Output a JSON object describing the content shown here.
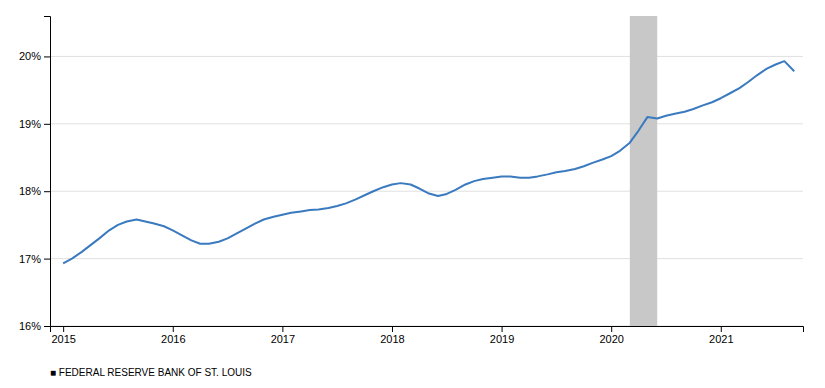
{
  "chart_data": {
    "type": "line",
    "color": "#3a7abf",
    "x": [
      2015.0,
      2015.08,
      2015.17,
      2015.25,
      2015.33,
      2015.42,
      2015.5,
      2015.58,
      2015.67,
      2015.75,
      2015.83,
      2015.92,
      2016.0,
      2016.08,
      2016.17,
      2016.25,
      2016.33,
      2016.42,
      2016.5,
      2016.58,
      2016.67,
      2016.75,
      2016.83,
      2016.92,
      2017.0,
      2017.08,
      2017.17,
      2017.25,
      2017.33,
      2017.42,
      2017.5,
      2017.58,
      2017.67,
      2017.75,
      2017.83,
      2017.92,
      2018.0,
      2018.08,
      2018.17,
      2018.25,
      2018.33,
      2018.42,
      2018.5,
      2018.58,
      2018.67,
      2018.75,
      2018.83,
      2018.92,
      2019.0,
      2019.08,
      2019.17,
      2019.25,
      2019.33,
      2019.42,
      2019.5,
      2019.58,
      2019.67,
      2019.75,
      2019.83,
      2019.92,
      2020.0,
      2020.08,
      2020.17,
      2020.25,
      2020.33,
      2020.42,
      2020.5,
      2020.58,
      2020.67,
      2020.75,
      2020.83,
      2020.92,
      2021.0,
      2021.08,
      2021.17,
      2021.25,
      2021.33,
      2021.42,
      2021.5,
      2021.58,
      2021.67
    ],
    "values": [
      16.93,
      17.0,
      17.1,
      17.2,
      17.3,
      17.42,
      17.5,
      17.55,
      17.58,
      17.55,
      17.52,
      17.48,
      17.42,
      17.35,
      17.27,
      17.22,
      17.22,
      17.25,
      17.3,
      17.37,
      17.45,
      17.52,
      17.58,
      17.62,
      17.65,
      17.68,
      17.7,
      17.72,
      17.73,
      17.75,
      17.78,
      17.82,
      17.88,
      17.94,
      18.0,
      18.06,
      18.1,
      18.12,
      18.1,
      18.04,
      17.97,
      17.93,
      17.96,
      18.02,
      18.1,
      18.15,
      18.18,
      18.2,
      18.22,
      18.22,
      18.2,
      18.2,
      18.22,
      18.25,
      18.28,
      18.3,
      18.33,
      18.37,
      18.42,
      18.47,
      18.52,
      18.6,
      18.72,
      18.9,
      19.1,
      19.08,
      19.12,
      19.15,
      19.18,
      19.22,
      19.27,
      19.32,
      19.38,
      19.45,
      19.53,
      19.62,
      19.72,
      19.82,
      19.88,
      19.93,
      19.78
    ],
    "xlim": [
      2014.88,
      2021.75
    ],
    "xticks": [
      2015,
      2016,
      2017,
      2018,
      2019,
      2020,
      2021
    ],
    "ylim": [
      16.0,
      20.6
    ],
    "yticks": [
      {
        "value": 16,
        "label": "16%"
      },
      {
        "value": 17,
        "label": "17%"
      },
      {
        "value": 18,
        "label": "18%"
      },
      {
        "value": 19,
        "label": "19%"
      },
      {
        "value": 20,
        "label": "20%"
      }
    ],
    "grid": true,
    "shaded_regions": [
      {
        "start": 2020.17,
        "end": 2020.42,
        "color": "#c8c8c8"
      }
    ],
    "annotations": [
      "■  FEDERAL RESERVE BANK OF ST. LOUIS"
    ]
  }
}
